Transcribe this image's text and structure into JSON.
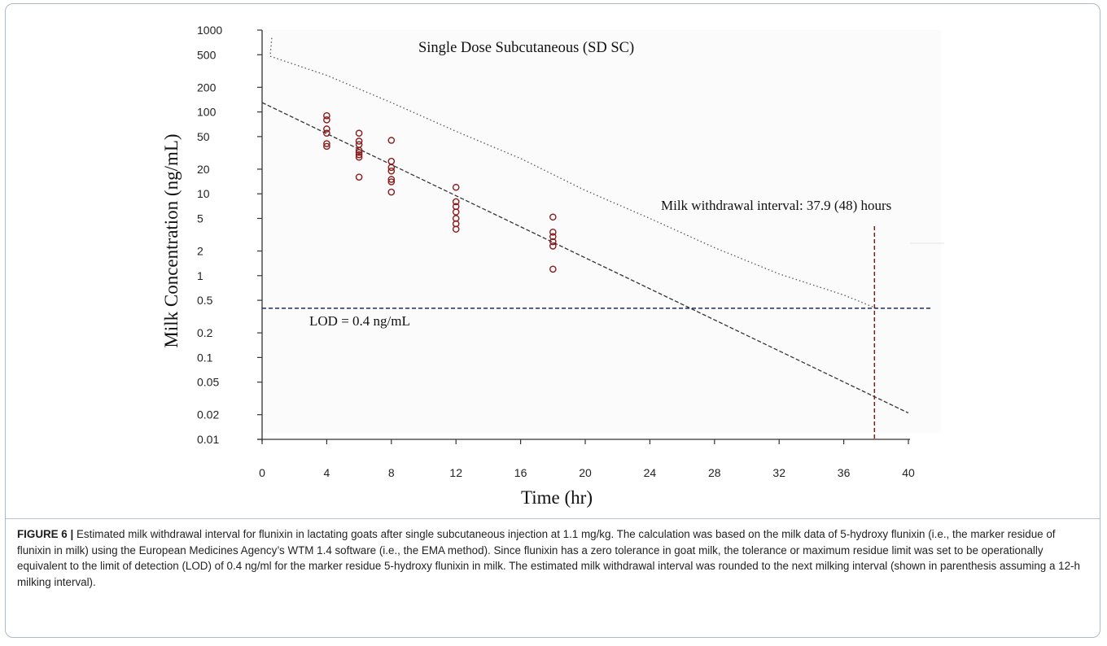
{
  "figure": {
    "label": "FIGURE 6 |",
    "caption": "Estimated milk withdrawal interval for flunixin in lactating goats after single subcutaneous injection at 1.1 mg/kg. The calculation was based on the milk data of 5-hydroxy flunixin (i.e., the marker residue of flunixin in milk) using the European Medicines Agency’s WTM 1.4 software (i.e., the EMA method). Since flunixin has a zero tolerance in goat milk, the tolerance or maximum residue limit was set to be operationally equivalent to the limit of detection (LOD) of 0.4 ng/ml for the marker residue 5-hydroxy flunixin in milk. The estimated milk withdrawal interval was rounded to the next milking interval (shown in parenthesis assuming a 12-h milking interval)."
  },
  "chart_data": {
    "type": "scatter",
    "title": "Single Dose Subcutaneous (SD SC)",
    "xlabel": "Time (hr)",
    "ylabel": "Milk Concentration (ng/mL)",
    "xlim": [
      0,
      40
    ],
    "ylim": [
      0.01,
      1000
    ],
    "yscale": "log",
    "x_ticks": [
      "0",
      "4",
      "8",
      "12",
      "16",
      "20",
      "24",
      "28",
      "32",
      "36",
      "40"
    ],
    "y_ticks": [
      "1000",
      "500",
      "200",
      "100",
      "50",
      "20",
      "10",
      "5",
      "2",
      "1",
      "0.5",
      "0.2",
      "0.1",
      "0.05",
      "0.02",
      "0.01"
    ],
    "grid": false,
    "series": [
      {
        "kind": "observations",
        "color": "#8b1a1a",
        "points": [
          [
            4,
            90
          ],
          [
            4,
            80
          ],
          [
            4,
            62
          ],
          [
            4,
            55
          ],
          [
            4,
            41
          ],
          [
            4,
            38
          ],
          [
            6,
            55
          ],
          [
            6,
            44
          ],
          [
            6,
            40
          ],
          [
            6,
            34
          ],
          [
            6,
            32
          ],
          [
            6,
            30
          ],
          [
            6,
            28
          ],
          [
            6,
            16
          ],
          [
            8,
            45
          ],
          [
            8,
            25
          ],
          [
            8,
            21
          ],
          [
            8,
            19
          ],
          [
            8,
            15
          ],
          [
            8,
            14
          ],
          [
            8,
            10.5
          ],
          [
            12,
            12
          ],
          [
            12,
            8
          ],
          [
            12,
            7
          ],
          [
            12,
            6
          ],
          [
            12,
            5
          ],
          [
            12,
            4.3
          ],
          [
            12,
            3.7
          ],
          [
            18,
            5.2
          ],
          [
            18,
            3.4
          ],
          [
            18,
            3.0
          ],
          [
            18,
            2.6
          ],
          [
            18,
            2.3
          ],
          [
            18,
            1.2
          ]
        ]
      },
      {
        "kind": "regression",
        "style": "dashed",
        "color": "#333333",
        "points": [
          [
            0,
            130
          ],
          [
            40,
            0.021
          ]
        ]
      },
      {
        "kind": "tolerance-limit",
        "style": "dotted",
        "color": "#555555",
        "points": [
          [
            0.6,
            800
          ],
          [
            0.5,
            480
          ],
          [
            4,
            280
          ],
          [
            8,
            130
          ],
          [
            12,
            58
          ],
          [
            16,
            27
          ],
          [
            20,
            11
          ],
          [
            24,
            5
          ],
          [
            28,
            2.2
          ],
          [
            32,
            1.05
          ],
          [
            36,
            0.58
          ],
          [
            38,
            0.4
          ]
        ]
      }
    ],
    "reference_lines": [
      {
        "orientation": "horizontal",
        "value": 0.4,
        "color": "#1f2a6b",
        "style": "dashed"
      },
      {
        "orientation": "vertical",
        "value": 37.9,
        "color": "#7a1f1f",
        "style": "dashed"
      }
    ],
    "annotations": {
      "lod": "LOD = 0.4 ng/mL",
      "withdrawal": "Milk withdrawal interval: 37.9 (48) hours"
    },
    "colors": {
      "points": "#8b1a1a",
      "lod_line": "#1f2a6b",
      "wdi_line": "#7a1f1f"
    }
  }
}
